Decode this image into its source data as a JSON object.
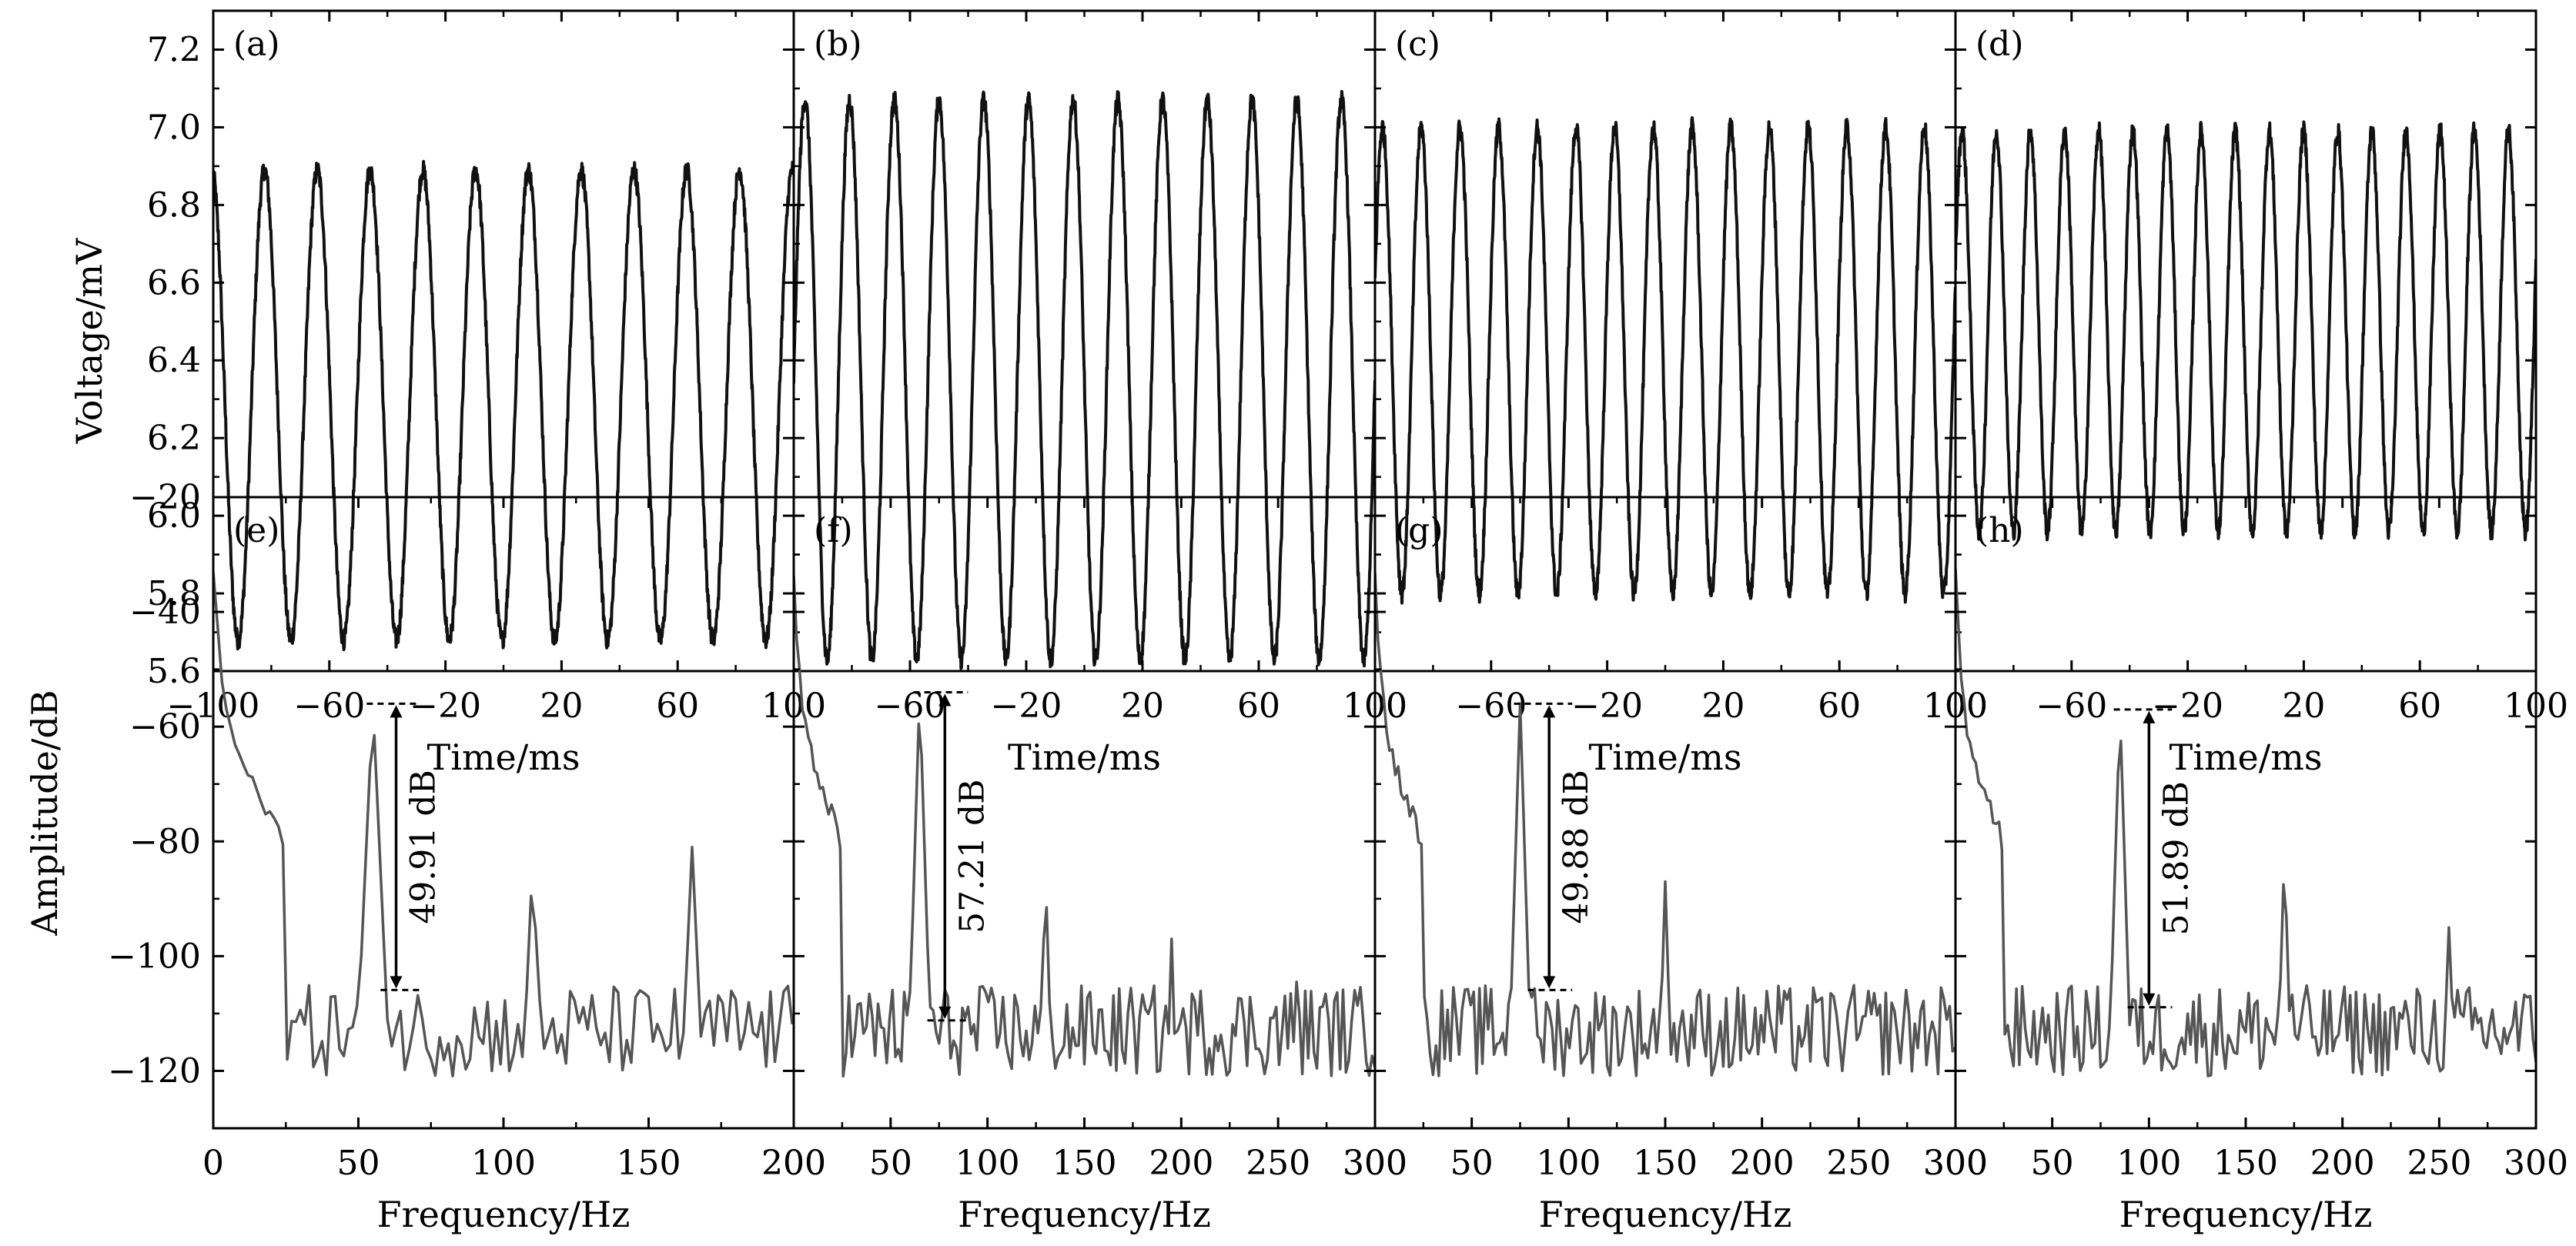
{
  "chart_data": [
    {
      "type": "line",
      "label": "(a)",
      "xlabel": "Time/ms",
      "ylabel": "Voltage/mV",
      "xlim": [
        -100,
        100
      ],
      "ylim": [
        5.6,
        7.3
      ],
      "xticks": [
        "−100",
        "−60",
        "−20",
        "20",
        "60",
        "100"
      ],
      "yticks": [
        "5.6",
        "5.8",
        "6.0",
        "6.2",
        "6.4",
        "6.6",
        "6.8",
        "7.0",
        "7.2"
      ],
      "signal": {
        "frequency_hz": 55,
        "min_mV": 5.68,
        "max_mV": 6.89,
        "phase_deg": -80
      }
    },
    {
      "type": "line",
      "label": "(b)",
      "xlabel": "Time/ms",
      "ylabel": "",
      "xlim": [
        -100,
        100
      ],
      "ylim": [
        5.6,
        7.3
      ],
      "xticks": [
        "100",
        "−60",
        "−20",
        "20",
        "60",
        "100"
      ],
      "signal": {
        "frequency_hz": 65,
        "min_mV": 5.63,
        "max_mV": 7.07,
        "phase_deg": 180
      }
    },
    {
      "type": "line",
      "label": "(c)",
      "xlabel": "Time/ms",
      "ylabel": "",
      "xlim": [
        -100,
        100
      ],
      "ylim": [
        5.6,
        7.3
      ],
      "xticks": [
        "100",
        "−60",
        "−20",
        "20",
        "60",
        "100"
      ],
      "signal": {
        "frequency_hz": 75,
        "min_mV": 5.8,
        "max_mV": 7.0,
        "phase_deg": 200
      }
    },
    {
      "type": "line",
      "label": "(d)",
      "xlabel": "Time/ms",
      "ylabel": "",
      "xlim": [
        -100,
        100
      ],
      "ylim": [
        5.6,
        7.3
      ],
      "xticks": [
        "100",
        "−60",
        "−20",
        "20",
        "60",
        "100"
      ],
      "signal": {
        "frequency_hz": 85,
        "min_mV": 5.96,
        "max_mV": 6.99,
        "phase_deg": 200
      }
    },
    {
      "type": "line",
      "label": "(e)",
      "xlabel": "Frequency/Hz",
      "ylabel": "Amplitude/dB",
      "xlim": [
        0,
        200
      ],
      "ylim": [
        -130,
        -20
      ],
      "xticks": [
        "0",
        "50",
        "100",
        "150",
        "200"
      ],
      "yticks": [
        "−120",
        "−100",
        "−80",
        "−60",
        "−40",
        "−20"
      ],
      "peaks": [
        {
          "f": 55,
          "dB": -56
        },
        {
          "f": 110,
          "dB": -84
        },
        {
          "f": 165,
          "dB": -81
        }
      ],
      "annotation": {
        "text": "49.91 dB",
        "x": 63,
        "top": -56,
        "bottom": -105.9
      }
    },
    {
      "type": "line",
      "label": "(f)",
      "xlabel": "Frequency/Hz",
      "ylabel": "",
      "xlim": [
        0,
        300
      ],
      "ylim": [
        -130,
        -20
      ],
      "xticks": [
        "200",
        "50",
        "100",
        "150",
        "200",
        "250",
        "300"
      ],
      "peaks": [
        {
          "f": 65,
          "dB": -54
        },
        {
          "f": 130,
          "dB": -86
        },
        {
          "f": 195,
          "dB": -97
        },
        {
          "f": 260,
          "dB": -99
        }
      ],
      "annotation": {
        "text": "57.21 dB",
        "x": 78,
        "top": -54,
        "bottom": -111.2
      }
    },
    {
      "type": "line",
      "label": "(g)",
      "xlabel": "Frequency/Hz",
      "ylabel": "",
      "xlim": [
        0,
        300
      ],
      "ylim": [
        -130,
        -20
      ],
      "xticks": [
        "300",
        "50",
        "100",
        "150",
        "200",
        "250",
        "300"
      ],
      "peaks": [
        {
          "f": 75,
          "dB": -56
        },
        {
          "f": 150,
          "dB": -87
        }
      ],
      "annotation": {
        "text": "49.88 dB",
        "x": 90,
        "top": -56,
        "bottom": -105.9
      }
    },
    {
      "type": "line",
      "label": "(h)",
      "xlabel": "Frequency/Hz",
      "ylabel": "",
      "xlim": [
        0,
        300
      ],
      "ylim": [
        -130,
        -20
      ],
      "xticks": [
        "300",
        "50",
        "100",
        "150",
        "200",
        "250",
        "300"
      ],
      "peaks": [
        {
          "f": 85,
          "dB": -57
        },
        {
          "f": 170,
          "dB": -82
        },
        {
          "f": 255,
          "dB": -95
        }
      ],
      "annotation": {
        "text": "51.89 dB",
        "x": 100,
        "top": -57,
        "bottom": -108.9
      }
    }
  ],
  "colors": {
    "time_trace": "#111111",
    "spectrum_trace": "#555555",
    "frame": "#000000"
  }
}
